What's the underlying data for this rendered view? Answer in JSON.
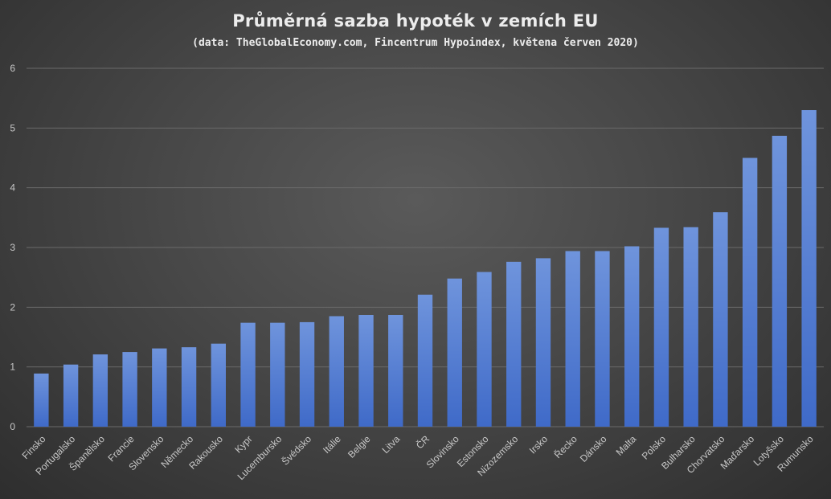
{
  "chart_data": {
    "type": "bar",
    "title": "Průměrná sazba hypoték v zemích EU",
    "subtitle": "(data: TheGlobalEconomy.com, Fincentrum Hypoindex, květena červen 2020)",
    "categories": [
      "Finsko",
      "Portugalsko",
      "Španělsko",
      "Francie",
      "Slovensko",
      "Německo",
      "Rakousko",
      "Kypr",
      "Lucembursko",
      "Švédsko",
      "Itálie",
      "Belgie",
      "Litva",
      "ČR",
      "Slovinsko",
      "Estonsko",
      "Nizozemsko",
      "Irsko",
      "Řecko",
      "Dánsko",
      "Malta",
      "Polsko",
      "Bulharsko",
      "Chorvatsko",
      "Maďarsko",
      "Lotyšsko",
      "Rumunsko"
    ],
    "values": [
      0.89,
      1.04,
      1.21,
      1.25,
      1.31,
      1.33,
      1.39,
      1.74,
      1.74,
      1.75,
      1.85,
      1.87,
      1.87,
      2.21,
      2.48,
      2.59,
      2.76,
      2.82,
      2.94,
      2.94,
      3.02,
      3.33,
      3.34,
      3.59,
      4.5,
      4.87,
      5.3
    ],
    "ylim": [
      0,
      6
    ],
    "yticks": [
      0,
      1,
      2,
      3,
      4,
      5,
      6
    ],
    "grid": true,
    "legend": "none",
    "bar_color_top": "#6f94dc",
    "bar_color_bottom": "#3f6ac8",
    "grid_color": "#6a6a6a"
  }
}
